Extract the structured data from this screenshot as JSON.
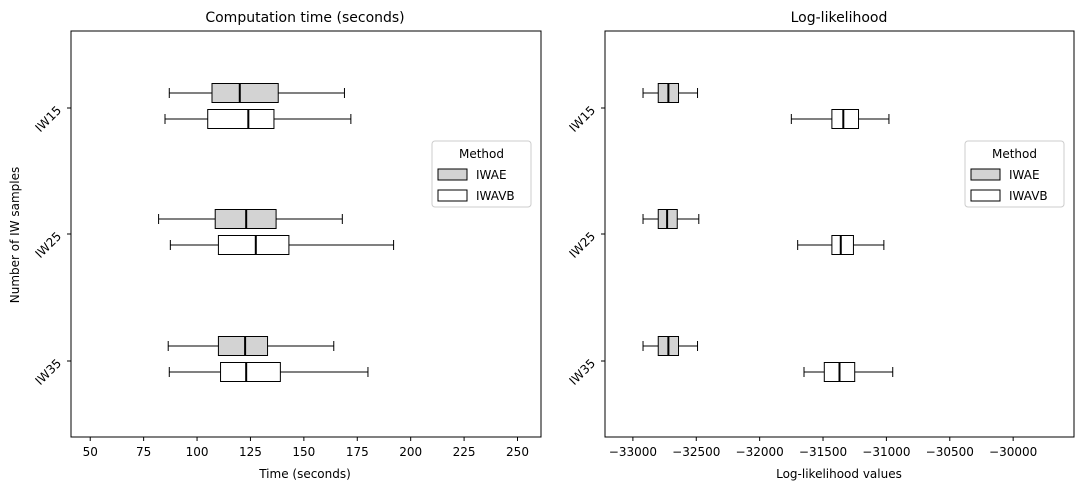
{
  "colors": {
    "iwae": "#d3d3d3",
    "iwavb": "#ffffff",
    "edge": "#000000"
  },
  "chart_data": [
    {
      "type": "boxplot",
      "orientation": "horizontal",
      "title": "Computation time (seconds)",
      "xlabel": "Time (seconds)",
      "ylabel": "Number of IW samples",
      "xlim": [
        41,
        261
      ],
      "xticks": [
        50,
        75,
        100,
        125,
        150,
        175,
        200,
        225,
        250
      ],
      "categories": [
        "IW15",
        "IW25",
        "IW35"
      ],
      "legend": {
        "title": "Method",
        "position": "right",
        "entries": [
          "IWAE",
          "IWAVB"
        ]
      },
      "series": [
        {
          "name": "IWAE",
          "boxes": [
            {
              "category": "IW15",
              "whislo": 87,
              "q1": 107,
              "median": 120,
              "q3": 138,
              "whishi": 169
            },
            {
              "category": "IW25",
              "whislo": 82,
              "q1": 108.5,
              "median": 123,
              "q3": 137,
              "whishi": 168
            },
            {
              "category": "IW35",
              "whislo": 86.5,
              "q1": 110,
              "median": 122.5,
              "q3": 133,
              "whishi": 164
            }
          ]
        },
        {
          "name": "IWAVB",
          "boxes": [
            {
              "category": "IW15",
              "whislo": 85,
              "q1": 105,
              "median": 124,
              "q3": 136,
              "whishi": 172
            },
            {
              "category": "IW25",
              "whislo": 87.5,
              "q1": 110,
              "median": 127.5,
              "q3": 143,
              "whishi": 192
            },
            {
              "category": "IW35",
              "whislo": 87,
              "q1": 111,
              "median": 123,
              "q3": 139,
              "whishi": 180
            }
          ]
        }
      ]
    },
    {
      "type": "boxplot",
      "orientation": "horizontal",
      "title": "Log-likelihood",
      "xlabel": "Log-likelihood values",
      "ylabel": "",
      "xlim": [
        -33220,
        -29520
      ],
      "xticks": [
        -33000,
        -32500,
        -32000,
        -31500,
        -31000,
        -30500,
        -30000
      ],
      "xtick_labels": [
        "−33000",
        "−32500",
        "−32000",
        "−31500",
        "−31000",
        "−30500",
        "−30000"
      ],
      "categories": [
        "IW15",
        "IW25",
        "IW35"
      ],
      "legend": {
        "title": "Method",
        "position": "right",
        "entries": [
          "IWAE",
          "IWAVB"
        ]
      },
      "series": [
        {
          "name": "IWAE",
          "boxes": [
            {
              "category": "IW15",
              "whislo": -32920,
              "q1": -32800,
              "median": -32720,
              "q3": -32640,
              "whishi": -32490
            },
            {
              "category": "IW25",
              "whislo": -32920,
              "q1": -32800,
              "median": -32730,
              "q3": -32650,
              "whishi": -32480
            },
            {
              "category": "IW35",
              "whislo": -32920,
              "q1": -32800,
              "median": -32720,
              "q3": -32640,
              "whishi": -32490
            }
          ]
        },
        {
          "name": "IWAVB",
          "boxes": [
            {
              "category": "IW15",
              "whislo": -31750,
              "q1": -31430,
              "median": -31340,
              "q3": -31220,
              "whishi": -30980
            },
            {
              "category": "IW25",
              "whislo": -31700,
              "q1": -31430,
              "median": -31360,
              "q3": -31260,
              "whishi": -31020
            },
            {
              "category": "IW35",
              "whislo": -31650,
              "q1": -31490,
              "median": -31370,
              "q3": -31250,
              "whishi": -30950
            }
          ]
        }
      ]
    }
  ]
}
